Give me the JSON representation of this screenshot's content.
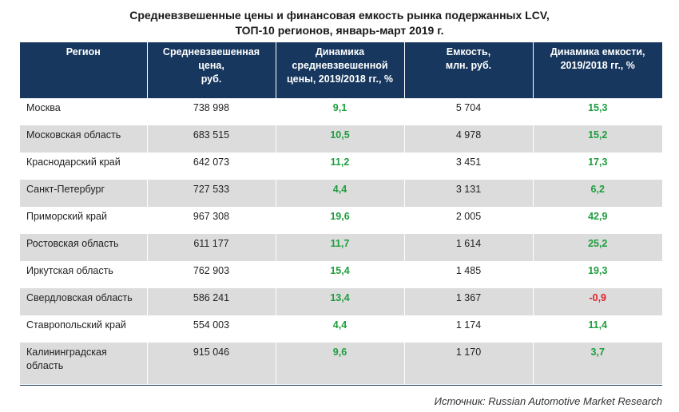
{
  "title": {
    "line1": "Средневзвешенные цены и финансовая емкость рынка подержанных LCV,",
    "line2": "ТОП-10 регионов, январь-март 2019 г."
  },
  "table": {
    "headers": [
      [
        "Регион"
      ],
      [
        "Средневзвешенная",
        "цена,",
        "руб."
      ],
      [
        "Динамика",
        "средневзвешенной",
        "цены, 2019/2018 гг., %"
      ],
      [
        "Емкость,",
        "млн. руб."
      ],
      [
        "Динамика емкости,",
        "2019/2018 гг., %"
      ]
    ],
    "rows": [
      {
        "region": [
          "Москва"
        ],
        "price": "738 998",
        "price_change": "9,1",
        "capacity": "5 704",
        "capacity_change": "15,3"
      },
      {
        "region": [
          "Московская область"
        ],
        "price": "683 515",
        "price_change": "10,5",
        "capacity": "4 978",
        "capacity_change": "15,2"
      },
      {
        "region": [
          "Краснодарский край"
        ],
        "price": "642 073",
        "price_change": "11,2",
        "capacity": "3 451",
        "capacity_change": "17,3"
      },
      {
        "region": [
          "Санкт-Петербург"
        ],
        "price": "727 533",
        "price_change": "4,4",
        "capacity": "3 131",
        "capacity_change": "6,2"
      },
      {
        "region": [
          "Приморский край"
        ],
        "price": "967 308",
        "price_change": "19,6",
        "capacity": "2 005",
        "capacity_change": "42,9"
      },
      {
        "region": [
          "Ростовская область"
        ],
        "price": "611 177",
        "price_change": "11,7",
        "capacity": "1 614",
        "capacity_change": "25,2"
      },
      {
        "region": [
          "Иркутская область"
        ],
        "price": "762 903",
        "price_change": "15,4",
        "capacity": "1 485",
        "capacity_change": "19,3"
      },
      {
        "region": [
          "Свердловская область"
        ],
        "price": "586 241",
        "price_change": "13,4",
        "capacity": "1 367",
        "capacity_change": "-0,9"
      },
      {
        "region": [
          "Ставропольский край"
        ],
        "price": "554 003",
        "price_change": "4,4",
        "capacity": "1 174",
        "capacity_change": "11,4"
      },
      {
        "region": [
          "Калининградская",
          "область"
        ],
        "price": "915 046",
        "price_change": "9,6",
        "capacity": "1 170",
        "capacity_change": "3,7"
      }
    ]
  },
  "source": "Источник: Russian Automotive Market Research",
  "colors": {
    "header_bg": "#17375e",
    "positive": "#1e9e3e",
    "negative": "#e0202a",
    "stripe": "#dcdcdc"
  }
}
